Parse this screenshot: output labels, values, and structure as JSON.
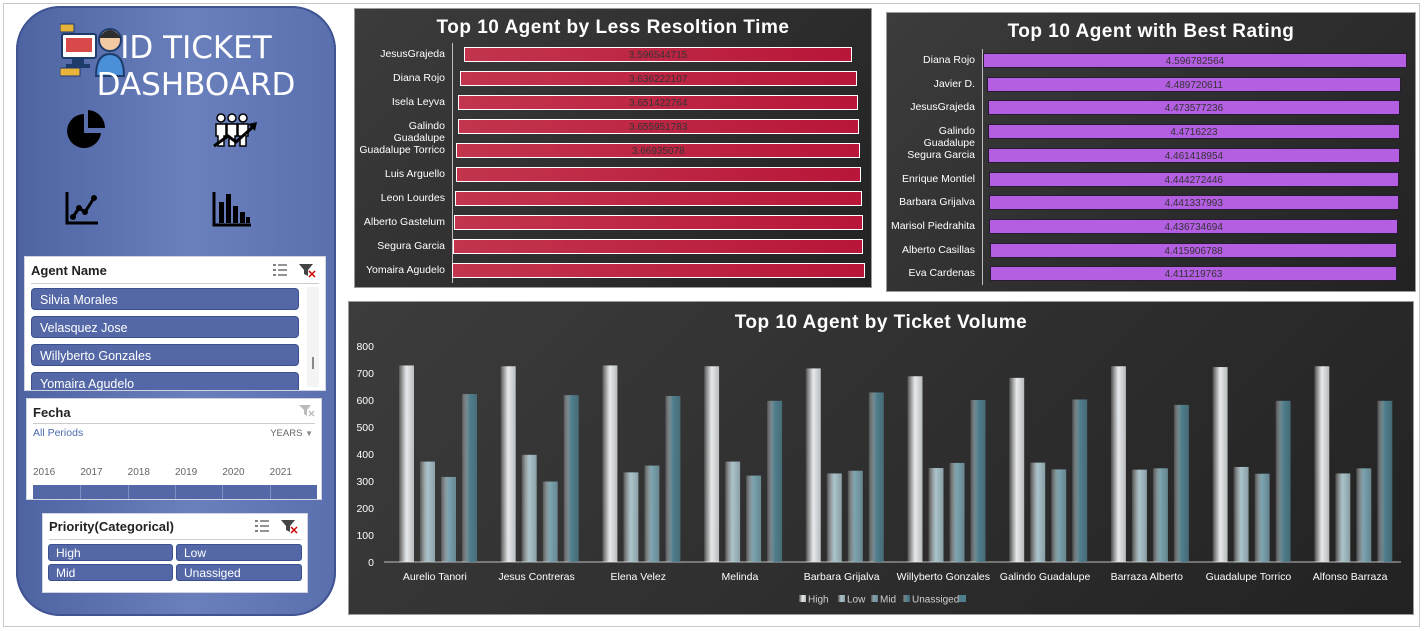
{
  "dashboard": {
    "title_line1": "ID TICKET",
    "title_line2": "DASHBOARD",
    "nav_icons": [
      "pie-chart-icon",
      "growth-people-icon",
      "line-chart-icon",
      "bar-chart-icon"
    ]
  },
  "agent_slicer": {
    "title": "Agent Name",
    "items": [
      "Silvia Morales",
      "Velasquez Jose",
      "Willyberto Gonzales",
      "Yomaira Agudelo"
    ]
  },
  "date_slicer": {
    "title": "Fecha",
    "all_periods": "All Periods",
    "level": "YEARS",
    "years": [
      "2016",
      "2017",
      "2018",
      "2019",
      "2020",
      "2021"
    ]
  },
  "priority_slicer": {
    "title": "Priority(Categorical)",
    "items": [
      "High",
      "Low",
      "Mid",
      "Unassiged"
    ]
  },
  "colors": {
    "sidebar": "#5a6fae",
    "slicer_item": "#5468a7",
    "panel_bg": "#2c2c2c",
    "resolution_bar": "#bb1f40",
    "rating_bar": "#b45ee2",
    "high": "#e6eaec",
    "low": "#a9c4cc",
    "mid": "#7aa3b0",
    "unassigned": "#4f7f8e"
  },
  "chart_data": [
    {
      "type": "bar",
      "orientation": "horizontal",
      "title": "Top 10 Agent by Less Resoltion Time",
      "categories": [
        "JesusGrajeda",
        "Diana Rojo",
        "Isela Leyva",
        "Galindo Guadalupe",
        "Guadalupe Torrico",
        "Luis Arguello",
        "Leon Lourdes",
        "Alberto Gastelum",
        "Segura Garcia",
        "Yomaira Agudelo"
      ],
      "labels": [
        "3.596544715",
        "3.636222107",
        "3.651422764",
        "3.655951783",
        "3.66935078",
        "",
        "",
        "",
        "",
        ""
      ],
      "values": [
        3.596544715,
        3.636222107,
        3.651422764,
        3.655951783,
        3.66935078,
        3.676,
        3.682,
        3.69,
        3.697,
        3.71
      ]
    },
    {
      "type": "bar",
      "orientation": "horizontal",
      "title": "Top 10 Agent with Best Rating",
      "categories": [
        "Diana Rojo",
        "Javier D.",
        "JesusGrajeda",
        "Galindo Guadalupe",
        "Segura Garcia",
        "Enrique Montiel",
        "Barbara Grijalva",
        "Marisol Piedrahita",
        "Alberto Casillas",
        "Eva Cardenas"
      ],
      "labels": [
        "4.596782564",
        "4.489720611",
        "4.473577236",
        "4.4716223",
        "4.461418954",
        "4.444272446",
        "4.441337993",
        "4.436734694",
        "4.415906788",
        "4.411219763"
      ],
      "values": [
        4.596782564,
        4.489720611,
        4.473577236,
        4.4716223,
        4.461418954,
        4.444272446,
        4.441337993,
        4.436734694,
        4.415906788,
        4.411219763
      ]
    },
    {
      "type": "bar",
      "title": "Top 10 Agent  by Ticket Volume",
      "categories": [
        "Aurelio Tanori",
        "Jesus Contreras",
        "Elena Velez",
        "Melinda",
        "Barbara Grijalva",
        "Willyberto Gonzales",
        "Galindo Guadalupe",
        "Barraza Alberto",
        "Guadalupe Torrico",
        "Alfonso Barraza"
      ],
      "series": [
        {
          "name": "High",
          "values": [
            728,
            725,
            728,
            725,
            717,
            688,
            682,
            725,
            722,
            725
          ]
        },
        {
          "name": "Low",
          "values": [
            372,
            397,
            332,
            372,
            328,
            348,
            368,
            342,
            352,
            328
          ]
        },
        {
          "name": "Mid",
          "values": [
            315,
            298,
            357,
            320,
            338,
            367,
            343,
            347,
            327,
            347
          ]
        },
        {
          "name": "Unassiged",
          "values": [
            622,
            618,
            615,
            597,
            628,
            600,
            602,
            582,
            597,
            597
          ]
        }
      ],
      "ylim": [
        0,
        800
      ],
      "yticks": [
        "0",
        "100",
        "200",
        "300",
        "400",
        "500",
        "600",
        "700",
        "800"
      ],
      "legend": "bottom",
      "grid": false
    }
  ]
}
